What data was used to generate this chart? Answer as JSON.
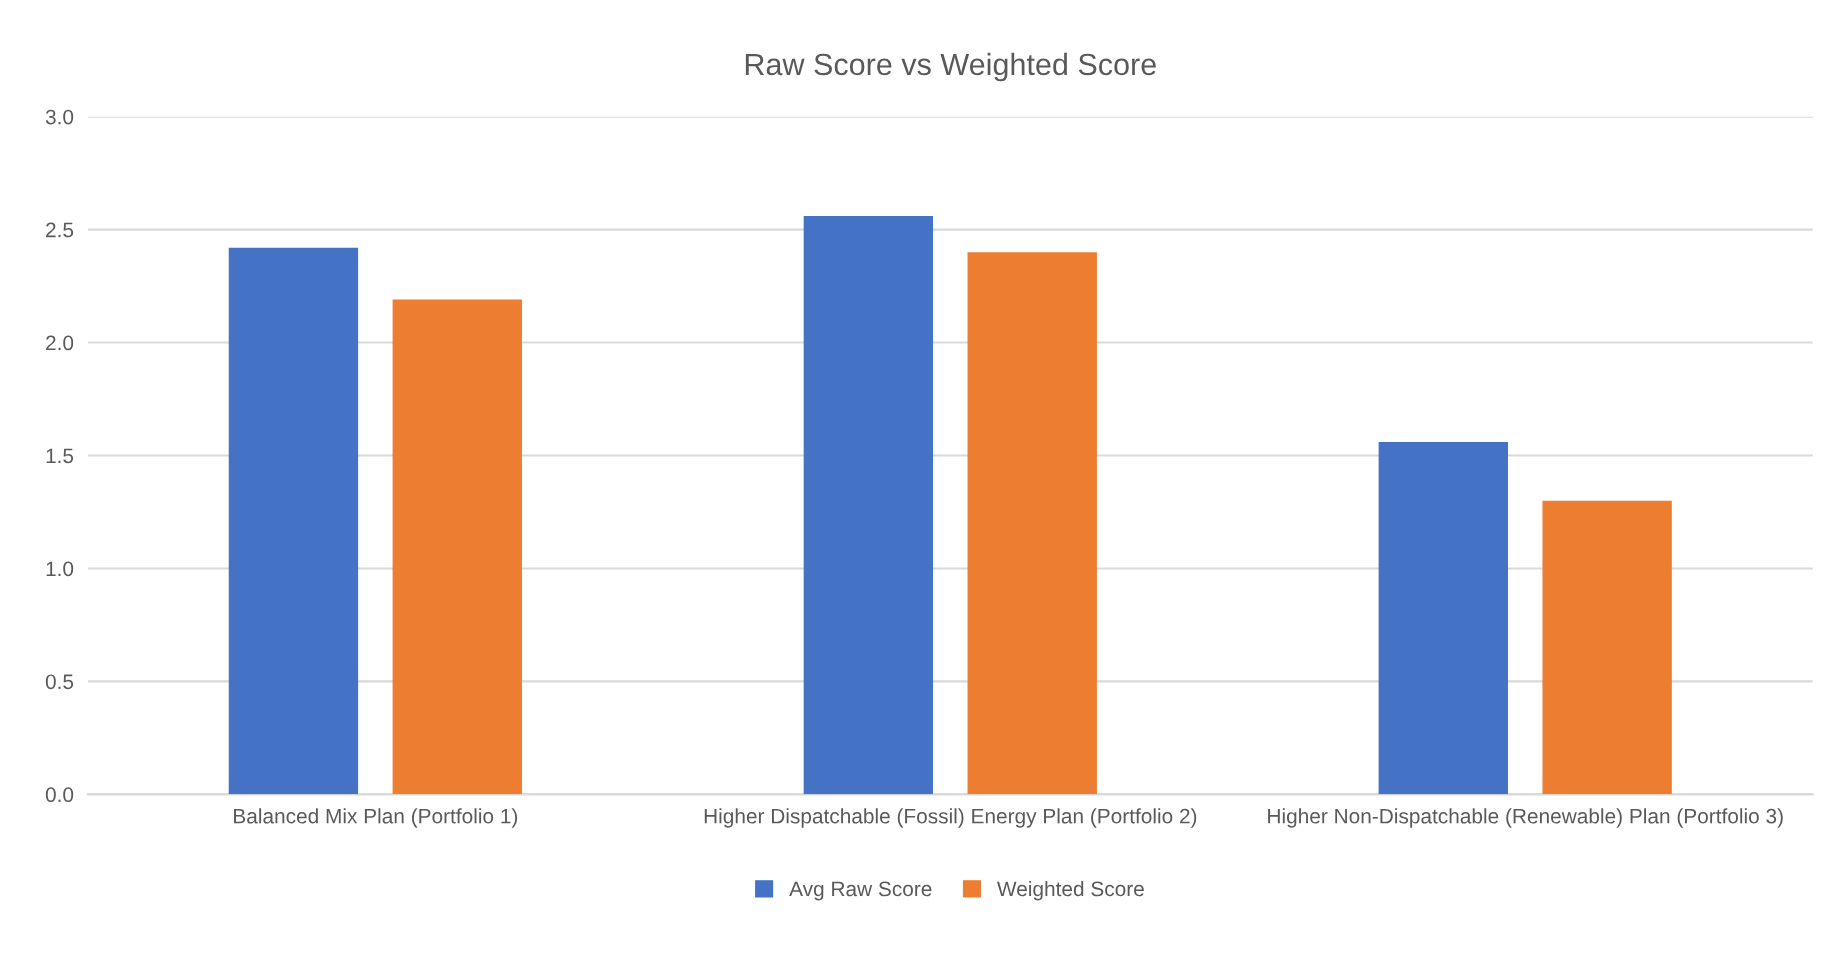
{
  "chart_data": {
    "type": "bar",
    "title": "Raw Score vs Weighted Score",
    "categories": [
      "Balanced Mix Plan (Portfolio 1)",
      "Higher Dispatchable (Fossil) Energy Plan (Portfolio 2)",
      "Higher Non-Dispatchable (Renewable) Plan (Portfolio 3)"
    ],
    "series": [
      {
        "name": "Avg Raw Score",
        "color": "#4472c4",
        "values": [
          2.42,
          2.56,
          1.56
        ]
      },
      {
        "name": "Weighted Score",
        "color": "#ed7d31",
        "values": [
          2.19,
          2.4,
          1.3
        ]
      }
    ],
    "ylim": [
      0,
      3.0
    ],
    "yticks": [
      {
        "value": 0,
        "label": "0.0"
      },
      {
        "value": 0.5,
        "label": "0.5"
      },
      {
        "value": 1.0,
        "label": "1.0"
      },
      {
        "value": 1.5,
        "label": "1.5"
      },
      {
        "value": 2.0,
        "label": "2.0"
      },
      {
        "value": 2.5,
        "label": "2.5"
      },
      {
        "value": 3.0,
        "label": "3.0"
      }
    ],
    "grid": "y",
    "legend": "bottom"
  }
}
